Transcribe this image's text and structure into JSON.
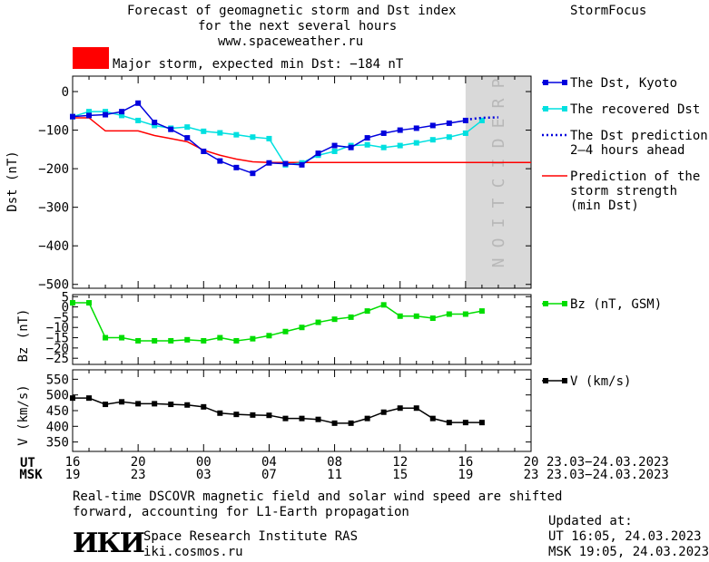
{
  "header": {
    "title_line1": "Forecast of geomagnetic storm and Dst index",
    "title_line2": "for the next several hours",
    "title_line3": "www.spaceweather.ru",
    "brand": "StormFocus"
  },
  "storm": {
    "color": "#ff0000",
    "label": "Major storm, expected min Dst: −184 nT"
  },
  "legend": {
    "dst_kyoto": "The Dst, Kyoto",
    "recovered": "The recovered Dst",
    "prediction_l1": "The Dst prediction",
    "prediction_l2": "2–4 hours ahead",
    "strength_l1": "Prediction of the",
    "strength_l2": "storm strength",
    "strength_l3": "(min Dst)",
    "bz": "Bz (nT, GSM)",
    "v": "V (km/s)"
  },
  "prediction_band_label": "PREDICTION",
  "time_axis": {
    "ut_label": "UT",
    "msk_label": "MSK",
    "ut_ticks": [
      "16",
      "20",
      "00",
      "04",
      "08",
      "12",
      "16",
      "20"
    ],
    "msk_ticks": [
      "19",
      "23",
      "03",
      "07",
      "11",
      "15",
      "19",
      "23"
    ],
    "ut_date_range": "23.03−24.03.2023",
    "msk_date_range": "23.03−24.03.2023"
  },
  "chart_data": [
    {
      "type": "line",
      "ylabel": "Dst (nT)",
      "ylim": [
        -510,
        40
      ],
      "yticks": [
        "0",
        "−100",
        "−200",
        "−300",
        "−400",
        "−500"
      ],
      "x_hours_since_16UT": [
        0,
        1,
        2,
        3,
        4,
        5,
        6,
        7,
        8,
        9,
        10,
        11,
        12,
        13,
        14,
        15,
        16,
        17,
        18,
        19,
        20,
        21,
        22,
        23,
        24,
        25,
        26,
        27,
        28,
        29,
        30
      ],
      "series": [
        {
          "name": "The Dst, Kyoto",
          "color": "#0000dd",
          "x": [
            0,
            1,
            2,
            3,
            4,
            5,
            6,
            7,
            8,
            9,
            10,
            11,
            12,
            13,
            14,
            15,
            16,
            17,
            18,
            19,
            20,
            21,
            22,
            23,
            24
          ],
          "values": [
            -65,
            -62,
            -60,
            -52,
            -30,
            -80,
            -98,
            -120,
            -155,
            -180,
            -197,
            -212,
            -185,
            -187,
            -190,
            -160,
            -140,
            -145,
            -120,
            -108,
            -100,
            -95,
            -88,
            -82,
            -75
          ]
        },
        {
          "name": "The recovered Dst",
          "color": "#00e0e0",
          "x": [
            0,
            1,
            2,
            3,
            4,
            5,
            6,
            7,
            8,
            9,
            10,
            11,
            12,
            13,
            14,
            15,
            16,
            17,
            18,
            19,
            20,
            21,
            22,
            23,
            24,
            25
          ],
          "values": [
            -65,
            -52,
            -52,
            -62,
            -75,
            -88,
            -95,
            -92,
            -103,
            -107,
            -112,
            -118,
            -122,
            -190,
            -185,
            -165,
            -155,
            -140,
            -138,
            -145,
            -140,
            -133,
            -125,
            -118,
            -108,
            -75
          ]
        },
        {
          "name": "The Dst prediction 2–4 hours ahead",
          "color": "#0000dd",
          "style": "dotted",
          "x": [
            24,
            25,
            26
          ],
          "values": [
            -73,
            -68,
            -67
          ]
        },
        {
          "name": "Prediction of the storm strength (min Dst)",
          "color": "#ff0000",
          "x": [
            0,
            1,
            2,
            3,
            4,
            5,
            6,
            7,
            8,
            9,
            10,
            11,
            12,
            13,
            14,
            15,
            16,
            17,
            18,
            19,
            20,
            21,
            22,
            23,
            24,
            25,
            26,
            27,
            28
          ],
          "values": [
            -68,
            -68,
            -102,
            -102,
            -102,
            -114,
            -122,
            -130,
            -152,
            -165,
            -175,
            -182,
            -184,
            -184,
            -184,
            -184,
            -184,
            -184,
            -184,
            -184,
            -184,
            -184,
            -184,
            -184,
            -184,
            -184,
            -184,
            -184,
            -184
          ]
        }
      ]
    },
    {
      "type": "line",
      "ylabel": "Bz (nT)",
      "ylim": [
        -28,
        6
      ],
      "yticks": [
        "5",
        "0",
        "−5",
        "−10",
        "−15",
        "−20",
        "−25"
      ],
      "series": [
        {
          "name": "Bz (nT, GSM)",
          "color": "#00dd00",
          "x": [
            0,
            1,
            2,
            3,
            4,
            5,
            6,
            7,
            8,
            9,
            10,
            11,
            12,
            13,
            14,
            15,
            16,
            17,
            18,
            19,
            20,
            21,
            22,
            23,
            24,
            25
          ],
          "values": [
            2,
            2,
            -15,
            -15,
            -16.5,
            -16.5,
            -16.5,
            -16,
            -16.5,
            -15,
            -16.5,
            -15.5,
            -14,
            -12,
            -10,
            -7.5,
            -6,
            -5,
            -2,
            1,
            -4.5,
            -4.5,
            -5.5,
            -3.5,
            -3.5,
            -2
          ]
        }
      ]
    },
    {
      "type": "line",
      "ylabel": "V (km/s)",
      "ylim": [
        320,
        580
      ],
      "yticks": [
        "550",
        "500",
        "450",
        "400",
        "350"
      ],
      "series": [
        {
          "name": "V (km/s)",
          "color": "#000000",
          "x": [
            0,
            1,
            2,
            3,
            4,
            5,
            6,
            7,
            8,
            9,
            10,
            11,
            12,
            13,
            14,
            15,
            16,
            17,
            18,
            19,
            20,
            21,
            22,
            23,
            24,
            25
          ],
          "values": [
            490,
            490,
            470,
            478,
            472,
            472,
            470,
            468,
            462,
            442,
            438,
            436,
            435,
            425,
            425,
            422,
            410,
            410,
            425,
            445,
            458,
            458,
            425,
            412,
            412,
            412
          ]
        }
      ]
    }
  ],
  "footer": {
    "note_line1": "Real-time DSCOVR magnetic field and solar wind speed are shifted",
    "note_line2": "forward, accounting for L1-Earth propagation",
    "logo_text": "ИКИ",
    "institute": "Space Research Institute RAS",
    "website": "iki.cosmos.ru",
    "updated_label": "Updated at:",
    "updated_ut": "UT   16:05, 24.03.2023",
    "updated_msk": "MSK 19:05, 24.03.2023"
  }
}
